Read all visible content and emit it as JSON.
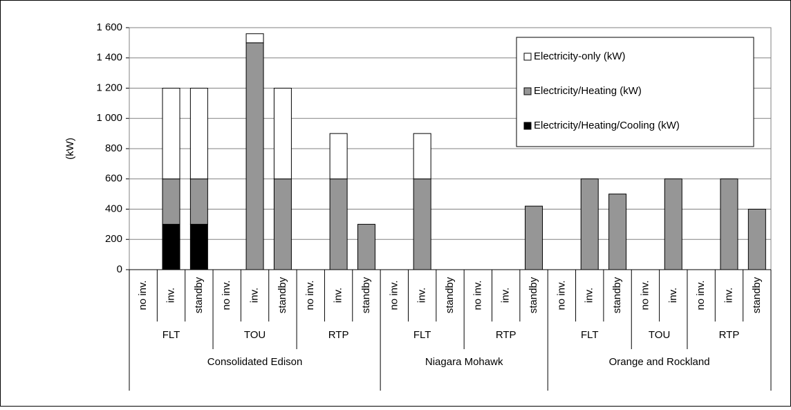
{
  "chart_data": {
    "type": "stacked-bar",
    "y_label": "(kW)",
    "ylim": [
      0,
      1600
    ],
    "yticks": [
      0,
      200,
      400,
      600,
      800,
      {
        "value": 1000,
        "label": "1 000"
      },
      {
        "value": 1200,
        "label": "1 200"
      },
      {
        "value": 1400,
        "label": "1 400"
      },
      {
        "value": 1600,
        "label": "1 600"
      }
    ],
    "grid": true,
    "legend": "top-right",
    "groups": [
      {
        "label": "Consolidated Edison",
        "groups": [
          {
            "label": "FLT",
            "categories": [
              "no inv.",
              "inv.",
              "standby"
            ]
          },
          {
            "label": "TOU",
            "categories": [
              "no inv.",
              "inv.",
              "standby"
            ]
          },
          {
            "label": "RTP",
            "categories": [
              "no inv.",
              "inv.",
              "standby"
            ]
          }
        ]
      },
      {
        "label": "Niagara Mohawk",
        "groups": [
          {
            "label": "FLT",
            "categories": [
              "no inv.",
              "inv.",
              "standby"
            ]
          },
          {
            "label": "RTP",
            "categories": [
              "no inv.",
              "inv.",
              "standby"
            ]
          }
        ]
      },
      {
        "label": "Orange and Rockland",
        "groups": [
          {
            "label": "FLT",
            "categories": [
              "no inv.",
              "inv.",
              "standby"
            ]
          },
          {
            "label": "TOU",
            "categories": [
              "no inv.",
              "inv."
            ]
          },
          {
            "label": "RTP",
            "categories": [
              "no inv.",
              "inv.",
              "standby"
            ]
          }
        ]
      }
    ],
    "series": [
      {
        "name": "Electricity-only (kW)",
        "color": "#ffffff",
        "values": [
          null,
          600,
          600,
          null,
          60,
          600,
          null,
          300,
          null,
          null,
          300,
          null,
          null,
          null,
          null,
          null,
          null,
          null,
          null,
          null,
          null,
          null,
          null
        ]
      },
      {
        "name": "Electricity/Heating  (kW)",
        "color": "#969696",
        "values": [
          null,
          300,
          300,
          null,
          1500,
          600,
          null,
          600,
          300,
          null,
          600,
          null,
          null,
          null,
          420,
          null,
          600,
          500,
          null,
          600,
          null,
          600,
          400
        ]
      },
      {
        "name": "Electricity/Heating/Cooling (kW)",
        "color": "#000000",
        "values": [
          null,
          300,
          300,
          null,
          null,
          null,
          null,
          null,
          null,
          null,
          null,
          null,
          null,
          null,
          null,
          null,
          null,
          null,
          null,
          null,
          null,
          null,
          null
        ]
      }
    ]
  }
}
